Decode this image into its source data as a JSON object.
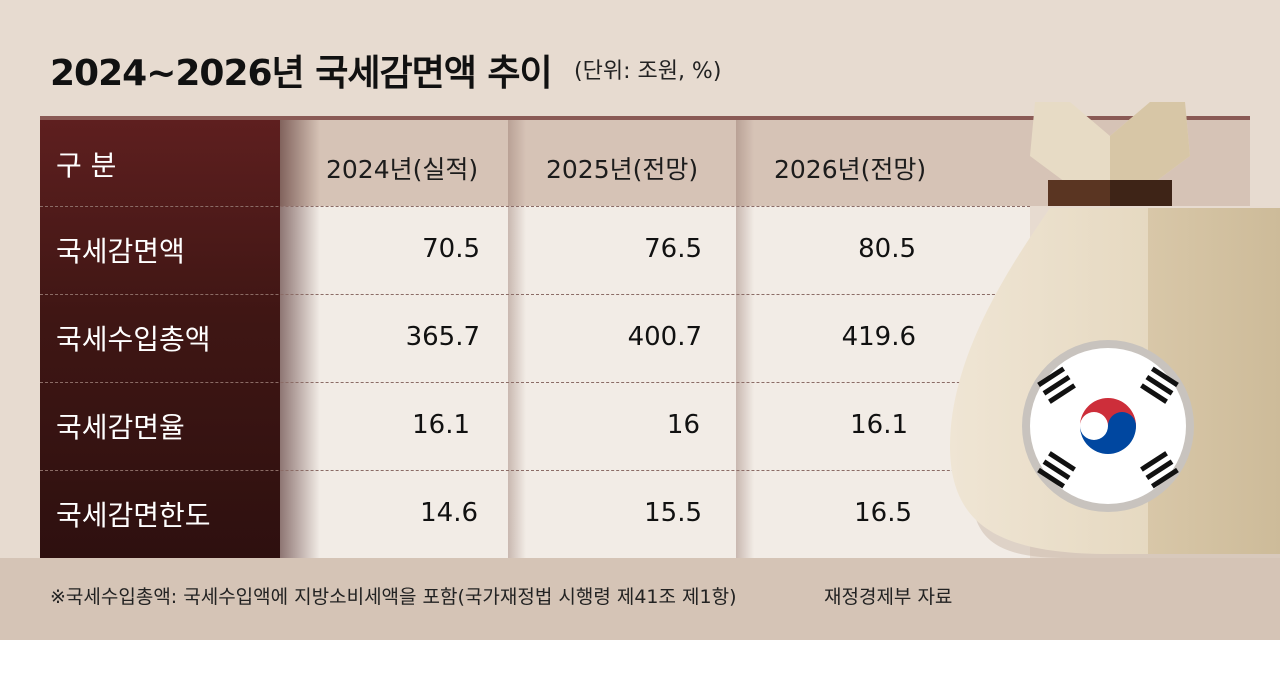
{
  "title": "2024~2026년 국세감면액 추이",
  "unit": "(단위: 조원, %)",
  "chart_data": {
    "type": "table",
    "title": "2024~2026년 국세감면액 추이",
    "unit": "(단위: 조원, %)",
    "corner_label": "구 분",
    "columns": [
      "2024년(실적)",
      "2025년(전망)",
      "2026년(전망)"
    ],
    "rows": [
      {
        "label": "국세감면액",
        "values": [
          "70.5",
          "76.5",
          "80.5"
        ]
      },
      {
        "label": "국세수입총액",
        "values": [
          "365.7",
          "400.7",
          "419.6"
        ]
      },
      {
        "label": "국세감면율",
        "values": [
          "16.1",
          "16",
          "16.1"
        ]
      },
      {
        "label": "국세감면한도",
        "values": [
          "14.6",
          "15.5",
          "16.5"
        ]
      }
    ]
  },
  "footnote": "※국세수입총액: 국세수입액에 지방소비세액을 포함(국가재정법 시행령 제41조 제1항)",
  "source": "재정경제부 자료",
  "colors": {
    "background": "#e7dbd0",
    "row_header": "#3f1614",
    "header_band": "#d6c3b6",
    "cell_bg": "#f2ece6",
    "bag": "#e8dcc6",
    "bag_band": "#5a3522",
    "flag_red": "#cd2e3a",
    "flag_blue": "#0047a0"
  },
  "icons": [
    "money-bag-icon",
    "korean-flag-icon"
  ]
}
